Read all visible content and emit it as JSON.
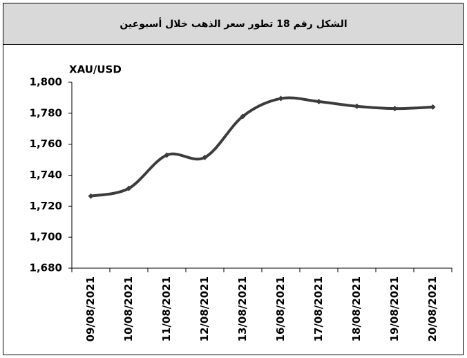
{
  "chart_data": {
    "type": "line",
    "title": "الشكل رقم 18 تطور سعر الذهب خلال أسبوعين",
    "y_label": "XAU/USD",
    "categories": [
      "09/08/2021",
      "10/08/2021",
      "11/08/2021",
      "12/08/2021",
      "13/08/2021",
      "16/08/2021",
      "17/08/2021",
      "18/08/2021",
      "19/08/2021",
      "20/08/2021"
    ],
    "series": [
      {
        "name": "XAU/USD",
        "color": "#3c3c3c",
        "values": [
          1726.5,
          1731.5,
          1753,
          1751.5,
          1778,
          1789.5,
          1787.5,
          1784.5,
          1783,
          1784
        ]
      }
    ],
    "ylim": [
      1680,
      1800
    ],
    "yticks": [
      {
        "value": 1680,
        "label": "1,680"
      },
      {
        "value": 1700,
        "label": "1,700"
      },
      {
        "value": 1720,
        "label": "1,720"
      },
      {
        "value": 1740,
        "label": "1,740"
      },
      {
        "value": 1760,
        "label": "1,760"
      },
      {
        "value": 1780,
        "label": "1,780"
      },
      {
        "value": 1800,
        "label": "1,800"
      }
    ],
    "grid": false
  }
}
